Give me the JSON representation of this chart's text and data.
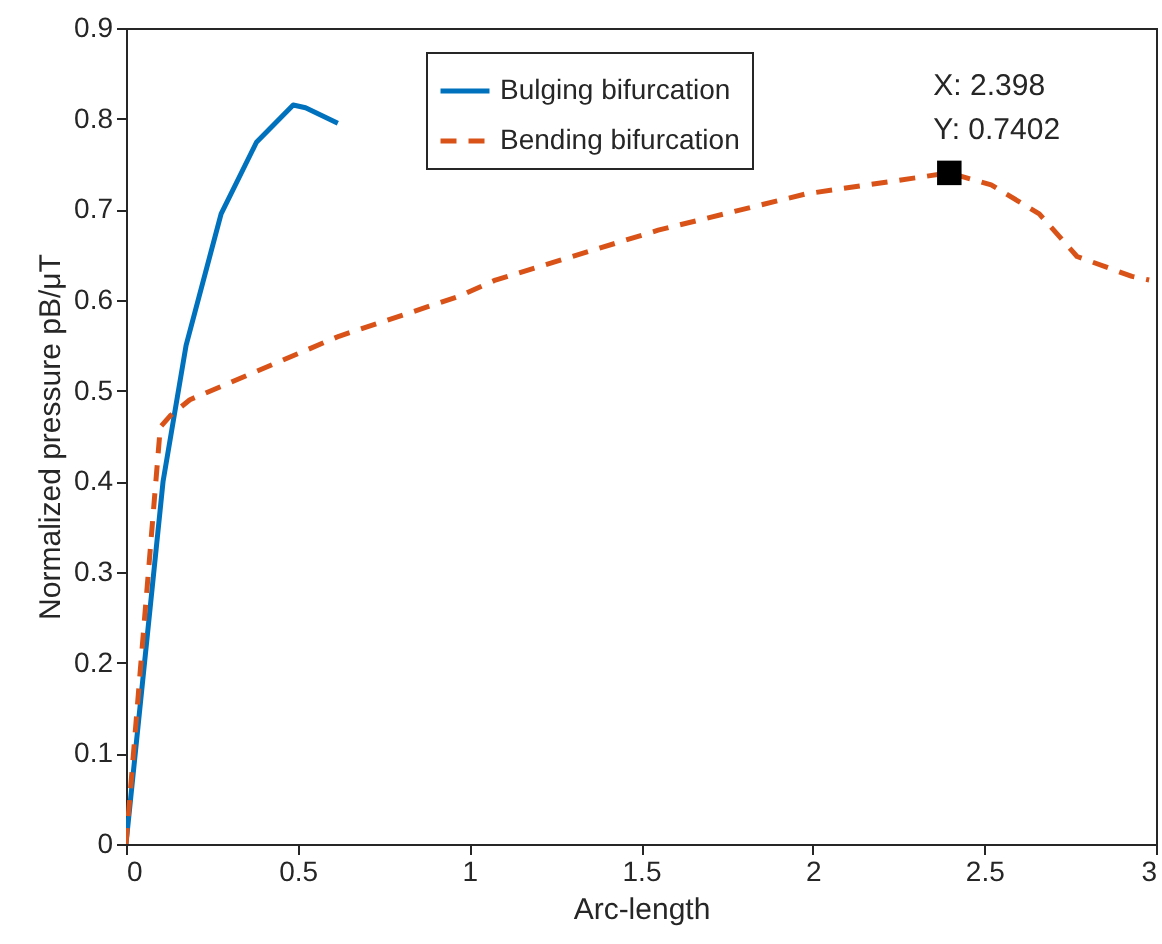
{
  "chart_data": {
    "type": "line",
    "xlabel": "Arc-length",
    "ylabel": "Normalized pressure pB/μT",
    "xlim": [
      0,
      3
    ],
    "xticks": [
      0,
      0.5,
      1,
      1.5,
      2,
      2.5,
      3
    ],
    "ylim": [
      0,
      0.9
    ],
    "yticks": [
      0,
      0.1,
      0.2,
      0.3,
      0.4,
      0.5,
      0.6,
      0.7,
      0.8,
      0.9
    ],
    "legend": "top",
    "grid": false,
    "series": [
      {
        "name": "Bulging bifurcation",
        "color": "#0072bd",
        "line_style": "solid",
        "x": [
          0,
          0.108,
          0.175,
          0.277,
          0.38,
          0.487,
          0.523,
          0.617
        ],
        "values": [
          0,
          0.4,
          0.55,
          0.695,
          0.774,
          0.815,
          0.812,
          0.795
        ]
      },
      {
        "name": "Bending bifurcation",
        "color": "#d95319",
        "line_style": "dashed",
        "x": [
          0,
          0.1,
          0.128,
          0.186,
          0.62,
          0.97,
          1.076,
          1.55,
          1.98,
          2.398,
          2.52,
          2.66,
          2.77,
          2.93,
          2.98
        ],
        "values": [
          0,
          0.46,
          0.472,
          0.49,
          0.56,
          0.604,
          0.622,
          0.677,
          0.717,
          0.7402,
          0.727,
          0.695,
          0.648,
          0.626,
          0.622
        ]
      },
      {
        "type": "scatter",
        "color": "#000000",
        "marker": "square",
        "x": [
          2.398
        ],
        "values": [
          0.7402
        ]
      }
    ],
    "annotations": [
      {
        "text": "X: 2.398\nY: 0.7402",
        "x": 2.398,
        "y": 0.7402
      }
    ]
  }
}
